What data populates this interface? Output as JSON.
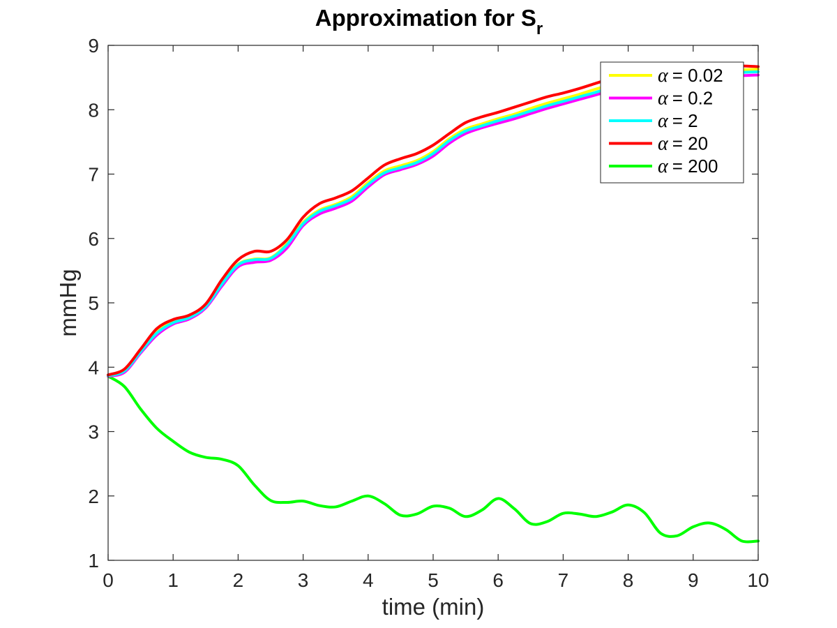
{
  "chart_data": {
    "type": "line",
    "title": "Approximation for S",
    "title_subscript": "r",
    "xlabel": "time (min)",
    "ylabel": "mmHg",
    "xlim": [
      0,
      10
    ],
    "ylim": [
      1,
      9
    ],
    "xticks": [
      "0",
      "1",
      "2",
      "3",
      "4",
      "5",
      "6",
      "7",
      "8",
      "9",
      "10"
    ],
    "yticks": [
      "1",
      "2",
      "3",
      "4",
      "5",
      "6",
      "7",
      "8",
      "9"
    ],
    "grid": false,
    "legend_position": "top-right",
    "legend_symbol": "α",
    "x": [
      0,
      0.25,
      0.5,
      0.75,
      1,
      1.25,
      1.5,
      1.75,
      2,
      2.25,
      2.5,
      2.75,
      3,
      3.25,
      3.5,
      3.75,
      4,
      4.25,
      4.5,
      4.75,
      5,
      5.25,
      5.5,
      5.75,
      6,
      6.25,
      6.5,
      6.75,
      7,
      7.25,
      7.5,
      7.75,
      8,
      8.25,
      8.5,
      8.75,
      9,
      9.25,
      9.5,
      9.75,
      10
    ],
    "series": [
      {
        "name": "= 0.02",
        "color": "#FFFF00",
        "values": [
          3.87,
          3.95,
          4.25,
          4.55,
          4.7,
          4.78,
          4.95,
          5.3,
          5.6,
          5.68,
          5.7,
          5.92,
          6.25,
          6.44,
          6.53,
          6.65,
          6.87,
          7.05,
          7.13,
          7.21,
          7.35,
          7.55,
          7.7,
          7.78,
          7.86,
          7.93,
          8.02,
          8.1,
          8.17,
          8.24,
          8.32,
          8.39,
          8.46,
          8.52,
          8.57,
          8.6,
          8.6,
          8.6,
          8.61,
          8.62,
          8.63
        ]
      },
      {
        "name": "= 0.2",
        "color": "#FF00FF",
        "values": [
          3.86,
          3.92,
          4.22,
          4.5,
          4.67,
          4.75,
          4.92,
          5.26,
          5.56,
          5.63,
          5.66,
          5.85,
          6.2,
          6.38,
          6.47,
          6.58,
          6.8,
          6.99,
          7.07,
          7.15,
          7.28,
          7.48,
          7.63,
          7.72,
          7.79,
          7.86,
          7.94,
          8.02,
          8.09,
          8.16,
          8.23,
          8.3,
          8.37,
          8.43,
          8.48,
          8.51,
          8.52,
          8.52,
          8.53,
          8.53,
          8.54
        ]
      },
      {
        "name": "= 2",
        "color": "#00FFFF",
        "values": [
          3.87,
          3.94,
          4.24,
          4.53,
          4.69,
          4.77,
          4.94,
          5.29,
          5.59,
          5.67,
          5.69,
          5.9,
          6.23,
          6.42,
          6.51,
          6.62,
          6.84,
          7.02,
          7.1,
          7.18,
          7.32,
          7.52,
          7.67,
          7.75,
          7.83,
          7.9,
          7.98,
          8.06,
          8.13,
          8.2,
          8.27,
          8.35,
          8.42,
          8.48,
          8.53,
          8.56,
          8.57,
          8.57,
          8.58,
          8.58,
          8.59
        ]
      },
      {
        "name": "= 20",
        "color": "#FF0000",
        "values": [
          3.88,
          3.97,
          4.28,
          4.6,
          4.74,
          4.81,
          4.98,
          5.36,
          5.67,
          5.8,
          5.8,
          5.98,
          6.33,
          6.54,
          6.63,
          6.74,
          6.94,
          7.14,
          7.24,
          7.32,
          7.45,
          7.63,
          7.8,
          7.89,
          7.96,
          8.04,
          8.12,
          8.2,
          8.26,
          8.33,
          8.41,
          8.49,
          8.56,
          8.62,
          8.66,
          8.68,
          8.68,
          8.68,
          8.68,
          8.68,
          8.67
        ]
      },
      {
        "name": "= 200",
        "color": "#00FF00",
        "values": [
          3.86,
          3.7,
          3.35,
          3.05,
          2.85,
          2.68,
          2.6,
          2.57,
          2.47,
          2.17,
          1.93,
          1.9,
          1.92,
          1.85,
          1.83,
          1.92,
          2.0,
          1.88,
          1.7,
          1.72,
          1.84,
          1.81,
          1.68,
          1.78,
          1.96,
          1.8,
          1.57,
          1.6,
          1.73,
          1.72,
          1.68,
          1.75,
          1.86,
          1.74,
          1.42,
          1.38,
          1.52,
          1.58,
          1.48,
          1.3,
          1.3
        ]
      }
    ]
  }
}
